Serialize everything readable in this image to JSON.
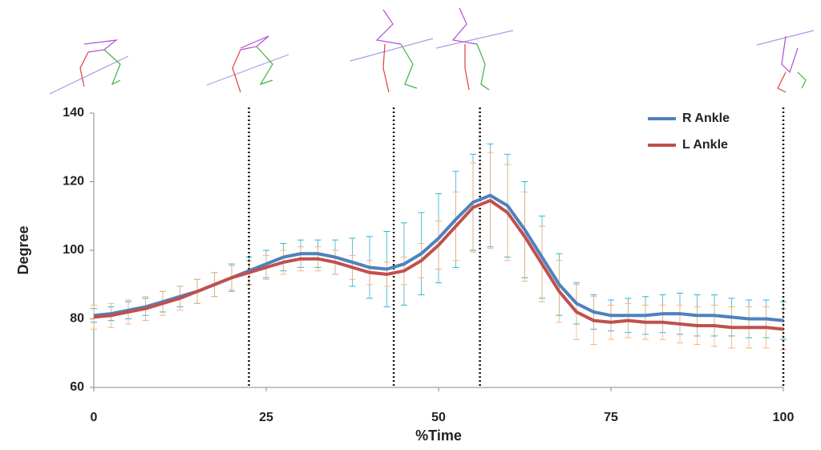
{
  "chart_data": {
    "type": "line",
    "x": [
      0,
      2.5,
      5,
      7.5,
      10,
      12.5,
      15,
      17.5,
      20,
      22.5,
      25,
      27.5,
      30,
      32.5,
      35,
      37.5,
      40,
      42.5,
      45,
      47.5,
      50,
      52.5,
      55,
      57.5,
      60,
      62.5,
      65,
      67.5,
      70,
      72.5,
      75,
      77.5,
      80,
      82.5,
      85,
      87.5,
      90,
      92.5,
      95,
      97.5,
      100
    ],
    "series": [
      {
        "name": "R Ankle",
        "color": "#4f81bd",
        "error_color": "#31b3d1",
        "values": [
          81,
          81.5,
          82.5,
          83.5,
          85,
          86.5,
          88,
          90,
          92,
          94,
          96,
          98,
          99,
          99,
          98,
          96.5,
          95,
          94.5,
          96,
          99,
          103.5,
          109,
          114,
          116,
          113,
          106,
          98,
          90,
          84.5,
          82,
          81,
          81,
          81,
          81.5,
          81.5,
          81,
          81,
          80.5,
          80,
          80,
          79.5
        ],
        "errors": [
          2,
          2,
          2.5,
          2.5,
          3,
          3,
          3.5,
          3.5,
          4,
          4,
          4,
          4,
          4,
          4,
          5,
          7,
          9,
          11,
          12,
          12,
          13,
          14,
          14,
          15,
          15,
          14,
          12,
          9,
          6,
          5,
          4.5,
          5,
          5.5,
          5.5,
          6,
          6,
          6,
          5.5,
          5.5,
          5.5,
          5.5
        ]
      },
      {
        "name": "L Ankle",
        "color": "#c0504d",
        "error_color": "#f7b27a",
        "values": [
          80.5,
          81,
          82,
          83,
          84.5,
          86,
          88,
          90,
          92,
          93.5,
          95,
          96.5,
          97.5,
          97.5,
          96.5,
          95,
          93.5,
          93,
          94,
          97,
          101.5,
          107,
          112.5,
          114.5,
          111,
          104,
          96,
          88,
          82,
          79.5,
          79,
          79.5,
          79,
          79,
          78.5,
          78,
          78,
          77.5,
          77.5,
          77.5,
          77
        ],
        "errors": [
          3.5,
          3.5,
          3.5,
          3.5,
          3.5,
          3.5,
          3.5,
          3.5,
          3.5,
          3.5,
          3.5,
          3.5,
          3.5,
          3.5,
          3.5,
          3.5,
          3.5,
          3.5,
          4,
          5,
          7,
          10,
          13,
          14,
          14,
          13,
          11,
          9,
          8,
          7,
          5,
          5,
          5,
          5,
          5.5,
          5.5,
          6,
          6,
          6,
          6,
          6
        ]
      }
    ],
    "markers": [
      22.5,
      43.5,
      56,
      100
    ],
    "xlim": [
      0,
      100
    ],
    "xticks": [
      0,
      25,
      50,
      75,
      100
    ],
    "ylim": [
      60,
      140
    ],
    "yticks": [
      60,
      80,
      100,
      120,
      140
    ],
    "xlabel": "%Time",
    "ylabel": "Degree"
  }
}
